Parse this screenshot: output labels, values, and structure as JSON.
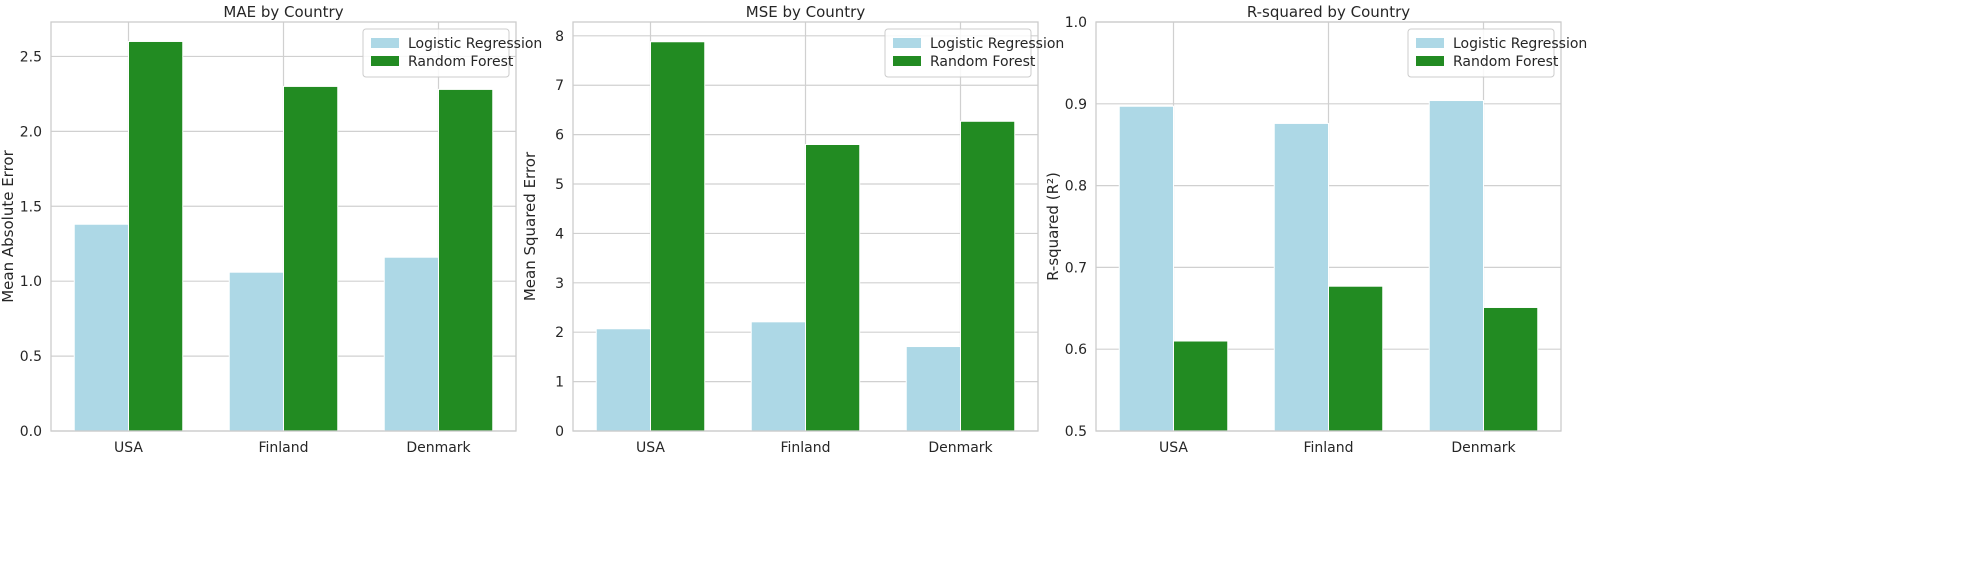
{
  "colors": {
    "logistic": "#add8e6",
    "forest": "#228b22",
    "grid": "#d0d0d0",
    "frame": "#cccccc"
  },
  "chart_data": [
    {
      "type": "bar",
      "title": "MAE by Country",
      "xlabel": "",
      "ylabel": "Mean Absolute Error",
      "categories": [
        "USA",
        "Finland",
        "Denmark"
      ],
      "ylim": [
        0,
        2.73
      ],
      "yticks": [
        0.0,
        0.5,
        1.0,
        1.5,
        2.0,
        2.5
      ],
      "ytick_labels": [
        "0.0",
        "0.5",
        "1.0",
        "1.5",
        "2.0",
        "2.5"
      ],
      "grid": true,
      "legend": "top-right",
      "series": [
        {
          "name": "Logistic Regression",
          "values": [
            1.38,
            1.06,
            1.16
          ]
        },
        {
          "name": "Random Forest",
          "values": [
            2.6,
            2.3,
            2.28
          ]
        }
      ]
    },
    {
      "type": "bar",
      "title": "MSE by Country",
      "xlabel": "",
      "ylabel": "Mean Squared Error",
      "categories": [
        "USA",
        "Finland",
        "Denmark"
      ],
      "ylim": [
        0,
        8.28
      ],
      "yticks": [
        0,
        1,
        2,
        3,
        4,
        5,
        6,
        7,
        8
      ],
      "ytick_labels": [
        "0",
        "1",
        "2",
        "3",
        "4",
        "5",
        "6",
        "7",
        "8"
      ],
      "grid": true,
      "legend": "top-right",
      "series": [
        {
          "name": "Logistic Regression",
          "values": [
            2.07,
            2.21,
            1.71
          ]
        },
        {
          "name": "Random Forest",
          "values": [
            7.88,
            5.8,
            6.27
          ]
        }
      ]
    },
    {
      "type": "bar",
      "title": "R-squared by Country",
      "xlabel": "",
      "ylabel": "R-squared (R²)",
      "categories": [
        "USA",
        "Finland",
        "Denmark"
      ],
      "ylim": [
        0.5,
        1.0
      ],
      "yticks": [
        0.5,
        0.6,
        0.7,
        0.8,
        0.9,
        1.0
      ],
      "ytick_labels": [
        "0.5",
        "0.6",
        "0.7",
        "0.8",
        "0.9",
        "1.0"
      ],
      "grid": true,
      "legend": "top-right",
      "series": [
        {
          "name": "Logistic Regression",
          "values": [
            0.897,
            0.876,
            0.904
          ]
        },
        {
          "name": "Random Forest",
          "values": [
            0.61,
            0.677,
            0.651
          ]
        }
      ]
    }
  ]
}
